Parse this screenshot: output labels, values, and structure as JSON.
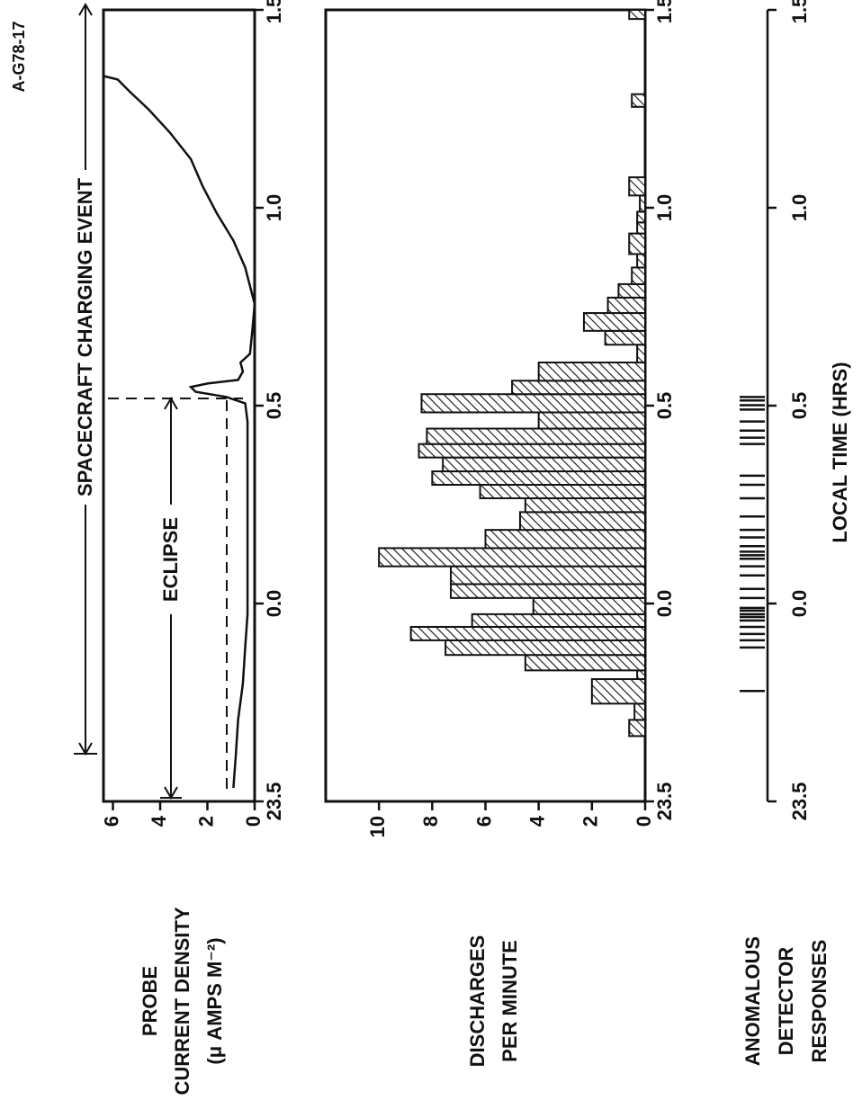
{
  "figure_label": "A-G78-17",
  "chart_data": [
    {
      "type": "line",
      "ylabel": [
        "PROBE",
        "CURRENT DENSITY",
        "(μ AMPS M⁻²)"
      ],
      "annotations": [
        "ECLIPSE",
        "SPACECRAFT CHARGING EVENT"
      ],
      "x": [
        -0.466,
        -0.386,
        -0.294,
        -0.203,
        -0.111,
        -0.027,
        0.071,
        0.163,
        0.3,
        0.46,
        0.506,
        0.522,
        0.535,
        0.547,
        0.556,
        0.565,
        0.586,
        0.609,
        0.631,
        0.689,
        0.757,
        0.849,
        0.917,
        0.986,
        1.054,
        1.123,
        1.191,
        1.249,
        1.294,
        1.324,
        1.333
      ],
      "values": [
        0.9,
        0.8,
        0.7,
        0.5,
        0.4,
        0.3,
        0.3,
        0.3,
        0.3,
        0.3,
        0.4,
        1.2,
        2.5,
        2.7,
        2.0,
        0.7,
        0.5,
        0.6,
        0.2,
        0.1,
        0.0,
        0.4,
        0.9,
        1.6,
        2.2,
        2.7,
        3.6,
        4.5,
        5.3,
        5.8,
        6.4
      ],
      "color": "#111111",
      "xlim": [
        -0.5,
        1.5
      ],
      "xticks": [
        {
          "value": -0.5,
          "label": "23.5"
        },
        {
          "value": 0,
          "label": "0.0"
        },
        0.5,
        {
          "value": 1,
          "label": "1.0"
        },
        1.5
      ],
      "ylim": [
        0,
        6.4
      ],
      "yticks": [
        0,
        2,
        4,
        6
      ]
    },
    {
      "type": "histogram",
      "ylabel": [
        "DISCHARGES",
        "PER MINUTE"
      ],
      "bins": [
        -0.335,
        -0.294,
        -0.253,
        -0.191,
        -0.169,
        -0.13,
        -0.093,
        -0.059,
        -0.027,
        0.014,
        0.049,
        0.094,
        0.14,
        0.186,
        0.231,
        0.266,
        0.3,
        0.334,
        0.369,
        0.403,
        0.442,
        0.483,
        0.529,
        0.563,
        0.609,
        0.654,
        0.689,
        0.734,
        0.773,
        0.807,
        0.849,
        0.883,
        0.935,
        0.963,
        0.99,
        1.031,
        1.077,
        1.255,
        1.287,
        1.477,
        1.5
      ],
      "values": [
        0.6,
        0.4,
        2.0,
        0.3,
        4.5,
        7.5,
        8.8,
        6.5,
        4.2,
        7.3,
        7.3,
        10.0,
        6.0,
        4.7,
        4.5,
        6.2,
        8.0,
        7.6,
        8.5,
        8.2,
        4.0,
        8.4,
        5.0,
        4.0,
        0.3,
        1.5,
        2.3,
        1.4,
        1.0,
        0.5,
        0.3,
        0.6,
        0.3,
        0.3,
        0.2,
        0.6,
        0,
        0.5,
        0,
        0.6
      ],
      "color": "#111111",
      "xlim": [
        -0.5,
        1.5
      ],
      "xticks": [
        {
          "value": -0.5,
          "label": "23.5"
        },
        {
          "value": 0,
          "label": "0.0"
        },
        0.5,
        {
          "value": 1,
          "label": "1.0"
        },
        1.5
      ],
      "ylim": [
        0,
        12
      ],
      "yticks": [
        0,
        2,
        4,
        6,
        8,
        10
      ]
    },
    {
      "type": "rug",
      "ylabel": [
        "ANOMALOUS",
        "DETECTOR",
        "RESPONSES"
      ],
      "xlabel": "LOCAL TIME (HRS)",
      "x": [
        -0.221,
        -0.111,
        -0.093,
        -0.077,
        -0.059,
        -0.043,
        -0.034,
        -0.027,
        -0.018,
        -0.011,
        0.014,
        0.037,
        0.071,
        0.094,
        0.113,
        0.122,
        0.131,
        0.145,
        0.167,
        0.186,
        0.22,
        0.266,
        0.3,
        0.323,
        0.403,
        0.419,
        0.437,
        0.46,
        0.49,
        0.501,
        0.513,
        0.522
      ],
      "color": "#111111",
      "xlim": [
        -0.5,
        1.5
      ],
      "xticks": [
        {
          "value": -0.5,
          "label": "23.5"
        },
        {
          "value": 0,
          "label": "0.0"
        },
        0.5,
        {
          "value": 1,
          "label": "1.0"
        },
        1.5
      ]
    }
  ]
}
